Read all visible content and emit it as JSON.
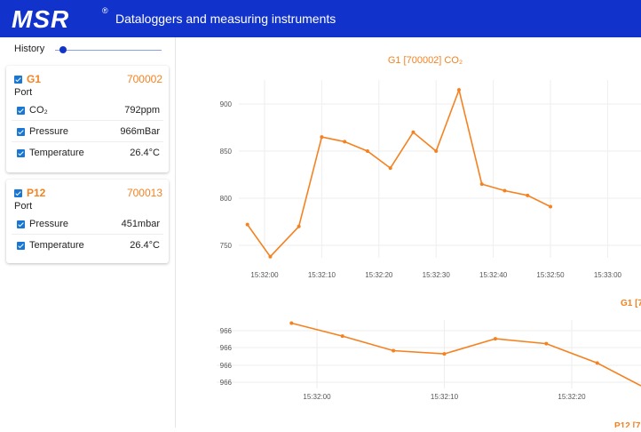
{
  "header": {
    "logo_text": "MSR",
    "reg_mark": "®",
    "title": "Dataloggers and measuring instruments"
  },
  "sidebar": {
    "history_label": "History",
    "history_position": 0.08,
    "devices": [
      {
        "name": "G1",
        "id": "700002",
        "port_label": "Port",
        "checked": true,
        "sensors": [
          {
            "label": "CO₂",
            "value": "792ppm",
            "checked": true
          },
          {
            "label": "Pressure",
            "value": "966mBar",
            "checked": true
          },
          {
            "label": "Temperature",
            "value": "26.4°C",
            "checked": true
          }
        ]
      },
      {
        "name": "P12",
        "id": "700013",
        "port_label": "Port",
        "checked": true,
        "sensors": [
          {
            "label": "Pressure",
            "value": "451mbar",
            "checked": true
          },
          {
            "label": "Temperature",
            "value": "26.4°C",
            "checked": true
          }
        ]
      }
    ]
  },
  "colors": {
    "header_bg": "#1133cc",
    "accent": "#f58220",
    "checkbox": "#1976d2"
  },
  "chart_data": [
    {
      "type": "line",
      "title": "G1 [700002] CO₂",
      "x": [
        "15:31:57",
        "15:32:01",
        "15:32:06",
        "15:32:10",
        "15:32:14",
        "15:32:18",
        "15:32:22",
        "15:32:26",
        "15:32:30",
        "15:32:34",
        "15:32:38",
        "15:32:42",
        "15:32:46",
        "15:32:50",
        "15:32:54"
      ],
      "values": [
        772,
        738,
        770,
        865,
        860,
        850,
        832,
        870,
        850,
        915,
        815,
        808,
        803,
        791,
        null
      ],
      "xticks": [
        "15:32:00",
        "15:32:10",
        "15:32:20",
        "15:32:30",
        "15:32:40",
        "15:32:50",
        "15:33:00"
      ],
      "yticks": [
        "750",
        "800",
        "850",
        "900"
      ],
      "ylim": [
        725,
        925
      ],
      "grid": true
    },
    {
      "type": "line",
      "title": "G1 [7",
      "x": [
        "15:31:58",
        "15:32:02",
        "15:32:06",
        "15:32:10",
        "15:32:14",
        "15:32:18",
        "15:32:22",
        "15:32:26"
      ],
      "values": [
        966.44,
        966.2,
        965.93,
        965.87,
        966.15,
        966.06,
        965.7,
        null
      ],
      "xticks": [
        "15:32:00",
        "15:32:10",
        "15:32:20"
      ],
      "yticks": [
        "966",
        "966",
        "966",
        "966"
      ],
      "grid": true
    },
    {
      "type": "line",
      "title": "P12 [7"
    }
  ]
}
